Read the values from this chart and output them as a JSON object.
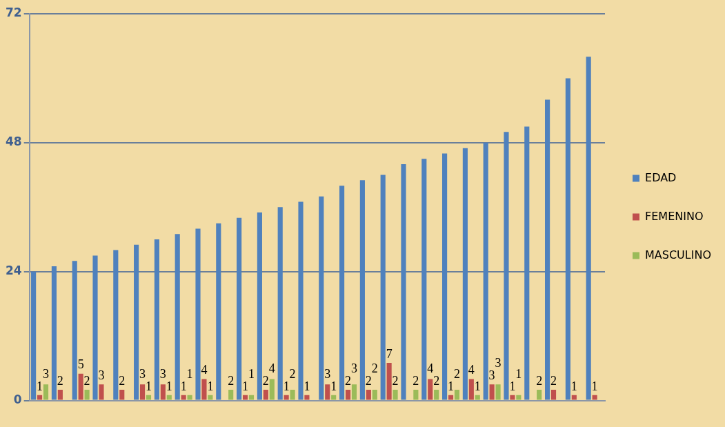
{
  "chart_data": {
    "type": "bar",
    "categories": [
      null,
      null,
      null,
      null,
      null,
      null,
      null,
      null,
      null,
      null,
      null,
      null,
      null,
      null,
      null,
      null,
      null,
      null,
      null,
      null,
      null,
      null,
      null,
      null,
      null,
      null,
      null,
      null
    ],
    "series": [
      {
        "name": "EDAD",
        "color": "#4f81bd",
        "values": [
          24,
          25,
          26,
          27,
          28,
          29,
          30,
          31,
          32,
          33,
          34,
          35,
          36,
          37,
          38,
          40,
          41,
          42,
          44,
          45,
          46,
          47,
          48,
          50,
          51,
          56,
          60,
          64
        ]
      },
      {
        "name": "FEMENINO",
        "color": "#c0504d",
        "values": [
          1,
          2,
          5,
          3,
          2,
          3,
          3,
          1,
          4,
          null,
          1,
          2,
          1,
          1,
          3,
          2,
          2,
          7,
          null,
          4,
          1,
          4,
          3,
          1,
          null,
          2,
          1,
          1
        ],
        "value_labels": [
          "1",
          "2",
          "5",
          "3",
          "2",
          "3",
          "3",
          "1",
          "4",
          null,
          "1",
          "2",
          "1",
          "1",
          "3",
          "2",
          "2",
          "7",
          null,
          "4",
          "1",
          "4",
          "3",
          "1",
          null,
          "2",
          "1",
          "1"
        ]
      },
      {
        "name": "MASCULINO",
        "color": "#9bbb59",
        "values": [
          3,
          null,
          2,
          null,
          null,
          1,
          1,
          1,
          1,
          2,
          1,
          4,
          2,
          null,
          1,
          3,
          2,
          2,
          2,
          2,
          2,
          1,
          3,
          1,
          2,
          null,
          null,
          null
        ],
        "value_labels": [
          "3",
          null,
          "2",
          null,
          null,
          "1",
          "1",
          "1",
          "1",
          "2",
          "1",
          "4",
          "2",
          null,
          "1",
          "3",
          "2",
          "2",
          "2",
          "2",
          "2",
          "1",
          "3",
          "1",
          "2",
          null,
          null,
          null
        ]
      }
    ],
    "ylim": [
      0,
      72
    ],
    "yticks": [
      0,
      24,
      48,
      72
    ],
    "grid": "y",
    "legend": "right"
  }
}
